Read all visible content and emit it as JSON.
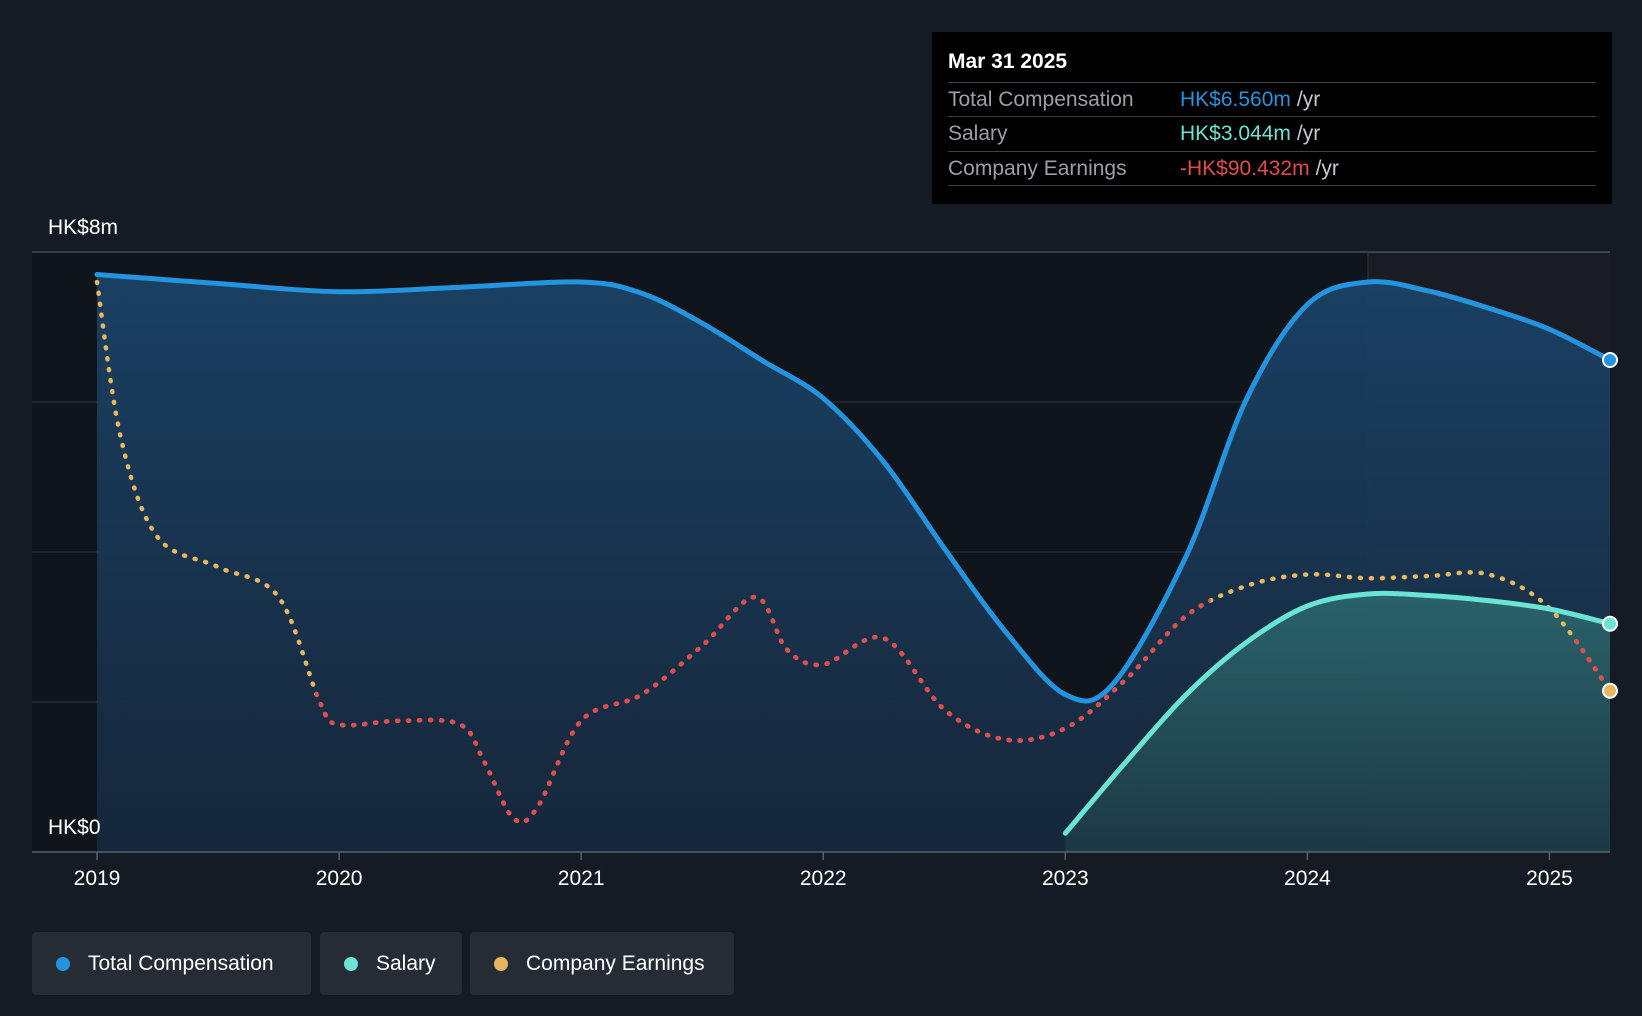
{
  "tooltip": {
    "date": "Mar 31 2025",
    "rows": [
      {
        "label": "Total Compensation",
        "value": "HK$6.560m",
        "unit": "/yr"
      },
      {
        "label": "Salary",
        "value": "HK$3.044m",
        "unit": "/yr"
      },
      {
        "label": "Company Earnings",
        "value": "-HK$90.432m",
        "unit": "/yr"
      }
    ]
  },
  "legend": [
    {
      "label": "Total Compensation"
    },
    {
      "label": "Salary"
    },
    {
      "label": "Company Earnings"
    }
  ],
  "colors": {
    "background": "#151b24",
    "total_compensation": "#2394df",
    "salary": "#6ae5d3",
    "earnings_positive": "#e8b65c",
    "earnings_negative": "#e34a4e"
  },
  "chart_data": {
    "type": "area",
    "title": "",
    "xlabel": "",
    "ylabel": "",
    "y_tick_labels": [
      "HK$0",
      "HK$8m"
    ],
    "ylim": [
      0,
      8
    ],
    "x_ticks": [
      "2019",
      "2020",
      "2021",
      "2022",
      "2023",
      "2024",
      "2025"
    ],
    "xlim": [
      2019.0,
      2025.25
    ],
    "series": [
      {
        "name": "Total Compensation",
        "unit": "HK$m",
        "points": [
          [
            2019.0,
            7.7
          ],
          [
            2019.5,
            7.58
          ],
          [
            2020.0,
            7.47
          ],
          [
            2020.5,
            7.53
          ],
          [
            2021.0,
            7.6
          ],
          [
            2021.25,
            7.45
          ],
          [
            2021.5,
            7.05
          ],
          [
            2021.75,
            6.55
          ],
          [
            2022.0,
            6.05
          ],
          [
            2022.25,
            5.2
          ],
          [
            2022.5,
            4.05
          ],
          [
            2022.75,
            2.95
          ],
          [
            2023.0,
            2.1
          ],
          [
            2023.2,
            2.25
          ],
          [
            2023.5,
            3.95
          ],
          [
            2023.75,
            6.05
          ],
          [
            2024.0,
            7.3
          ],
          [
            2024.25,
            7.6
          ],
          [
            2024.5,
            7.48
          ],
          [
            2024.75,
            7.25
          ],
          [
            2025.0,
            6.97
          ],
          [
            2025.25,
            6.56
          ]
        ]
      },
      {
        "name": "Salary",
        "unit": "HK$m",
        "points": [
          [
            2023.0,
            0.25
          ],
          [
            2023.25,
            1.2
          ],
          [
            2023.5,
            2.1
          ],
          [
            2023.75,
            2.8
          ],
          [
            2024.0,
            3.28
          ],
          [
            2024.25,
            3.44
          ],
          [
            2024.5,
            3.42
          ],
          [
            2024.75,
            3.35
          ],
          [
            2025.0,
            3.24
          ],
          [
            2025.25,
            3.044
          ]
        ]
      },
      {
        "name": "Company Earnings",
        "scale": "relative",
        "points": [
          [
            2019.0,
            7.6
          ],
          [
            2019.1,
            5.5
          ],
          [
            2019.25,
            4.2
          ],
          [
            2019.5,
            3.8
          ],
          [
            2019.75,
            3.4
          ],
          [
            2019.92,
            2.0
          ],
          [
            2020.0,
            1.7
          ],
          [
            2020.25,
            1.75
          ],
          [
            2020.5,
            1.7
          ],
          [
            2020.6,
            1.2
          ],
          [
            2020.72,
            0.45
          ],
          [
            2020.82,
            0.6
          ],
          [
            2021.0,
            1.75
          ],
          [
            2021.25,
            2.1
          ],
          [
            2021.5,
            2.75
          ],
          [
            2021.72,
            3.4
          ],
          [
            2021.85,
            2.7
          ],
          [
            2022.0,
            2.5
          ],
          [
            2022.25,
            2.85
          ],
          [
            2022.5,
            1.9
          ],
          [
            2022.75,
            1.5
          ],
          [
            2023.0,
            1.65
          ],
          [
            2023.25,
            2.3
          ],
          [
            2023.5,
            3.15
          ],
          [
            2023.75,
            3.55
          ],
          [
            2024.0,
            3.7
          ],
          [
            2024.25,
            3.65
          ],
          [
            2024.5,
            3.68
          ],
          [
            2024.75,
            3.7
          ],
          [
            2025.0,
            3.25
          ],
          [
            2025.25,
            2.15
          ]
        ],
        "negative_ranges": [
          [
            2019.9,
            2023.6
          ]
        ]
      }
    ],
    "highlight_region": [
      2024.25,
      2025.25
    ],
    "grid": true,
    "legend_position": "bottom-left"
  }
}
